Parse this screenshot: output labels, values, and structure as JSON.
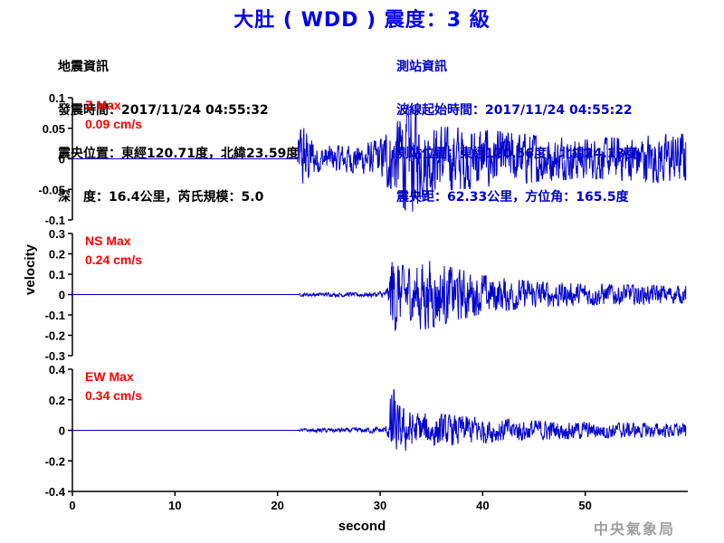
{
  "title": "大肚 ( WDD ) 震度：3 級",
  "earthquake_info": {
    "header": "地震資訊",
    "origin_time": "發震時間：2017/11/24 04:55:32",
    "epicenter": "震央位置：東經120.71度，北緯23.59度",
    "depth_magnitude": "深　度：16.4公里，芮氏規模：5.0"
  },
  "station_info": {
    "header": "測站資訊",
    "wave_start": "波線起始時間：2017/11/24 04:55:22",
    "station_location": "測站位置：東經120.56度，北緯24.13度",
    "distance_azimuth": "震央距：62.33公里，方位角：165.5度"
  },
  "agency": "中央氣象局",
  "colors": {
    "trace": "#0000cc",
    "title": "#0000ee",
    "max_label": "#ff0000",
    "axis": "#000000"
  },
  "chart_data": {
    "type": "line",
    "xlabel": "second",
    "ylabel": "velocity",
    "xlim": [
      0,
      60
    ],
    "xticks": [
      0,
      10,
      20,
      30,
      40,
      50
    ],
    "panels": [
      {
        "name": "Z",
        "max_label": "Z Max",
        "max_value": "0.09 cm/s",
        "ylim": [
          -0.1,
          0.1
        ],
        "yticks": [
          -0.1,
          -0.05,
          0,
          0.05,
          0.1
        ],
        "yticklabels": [
          "-0.1",
          "-0.05",
          "0",
          "0.05",
          "0.1"
        ],
        "envelope": [
          [
            0,
            0
          ],
          [
            21.9,
            0
          ],
          [
            22.0,
            0.03
          ],
          [
            22.3,
            0.055
          ],
          [
            24,
            0.02
          ],
          [
            28,
            0.022
          ],
          [
            30,
            0.03
          ],
          [
            31,
            0.05
          ],
          [
            32,
            0.07
          ],
          [
            33,
            0.09
          ],
          [
            34,
            0.06
          ],
          [
            36,
            0.05
          ],
          [
            40,
            0.045
          ],
          [
            46,
            0.035
          ],
          [
            50,
            0.03
          ],
          [
            55,
            0.035
          ],
          [
            60,
            0.04
          ]
        ]
      },
      {
        "name": "NS",
        "max_label": "NS Max",
        "max_value": "0.24 cm/s",
        "ylim": [
          -0.3,
          0.3
        ],
        "yticks": [
          -0.3,
          -0.2,
          -0.1,
          0,
          0.1,
          0.2,
          0.3
        ],
        "yticklabels": [
          "-0.3",
          "-0.2",
          "-0.1",
          "0",
          "0.1",
          "0.2",
          "0.3"
        ],
        "envelope": [
          [
            0,
            0
          ],
          [
            22,
            0
          ],
          [
            22.3,
            0.008
          ],
          [
            28,
            0.01
          ],
          [
            30.5,
            0.015
          ],
          [
            30.9,
            0.05
          ],
          [
            31.1,
            0.24
          ],
          [
            31.6,
            0.15
          ],
          [
            33,
            0.12
          ],
          [
            34,
            0.17
          ],
          [
            36,
            0.14
          ],
          [
            40,
            0.09
          ],
          [
            45,
            0.06
          ],
          [
            50,
            0.05
          ],
          [
            60,
            0.04
          ]
        ]
      },
      {
        "name": "EW",
        "max_label": "EW Max",
        "max_value": "0.34 cm/s",
        "ylim": [
          -0.4,
          0.4
        ],
        "yticks": [
          -0.4,
          -0.2,
          0,
          0.2,
          0.4
        ],
        "yticklabels": [
          "-0.4",
          "-0.2",
          "0",
          "0.2",
          "0.4"
        ],
        "envelope": [
          [
            0,
            0
          ],
          [
            22,
            0
          ],
          [
            22.3,
            0.01
          ],
          [
            28,
            0.015
          ],
          [
            30.5,
            0.02
          ],
          [
            30.9,
            0.06
          ],
          [
            31.1,
            0.34
          ],
          [
            31.6,
            0.16
          ],
          [
            33,
            0.11
          ],
          [
            36,
            0.1
          ],
          [
            40,
            0.08
          ],
          [
            45,
            0.06
          ],
          [
            50,
            0.05
          ],
          [
            60,
            0.04
          ]
        ]
      }
    ]
  }
}
